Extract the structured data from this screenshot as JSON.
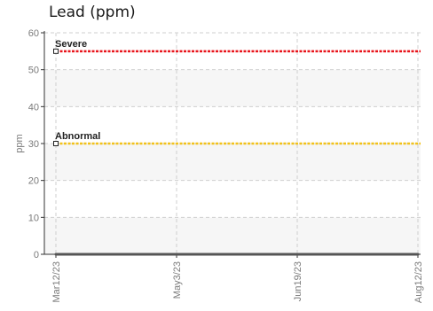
{
  "chart_data": {
    "type": "line",
    "title": "Lead (ppm)",
    "ylabel": "ppm",
    "xlabel": "",
    "ylim": [
      0,
      60
    ],
    "y_ticks": [
      "0",
      "10",
      "20",
      "30",
      "40",
      "50",
      "60"
    ],
    "x_ticks": [
      "Mar12/23",
      "May3/23",
      "Jun19/23",
      "Aug12/23"
    ],
    "grid": true,
    "thresholds": [
      {
        "label": "Severe",
        "value": 55,
        "color": "#e8141b"
      },
      {
        "label": "Abnormal",
        "value": 30,
        "color": "#f2c21b"
      }
    ],
    "series": [
      {
        "color": "#555555",
        "points": [
          {
            "x": "Mar12/23",
            "y": 0
          },
          {
            "x": "May3/23",
            "y": 0
          },
          {
            "x": "Jun19/23",
            "y": 0
          },
          {
            "x": "Aug12/23",
            "y": 0
          }
        ]
      }
    ]
  }
}
